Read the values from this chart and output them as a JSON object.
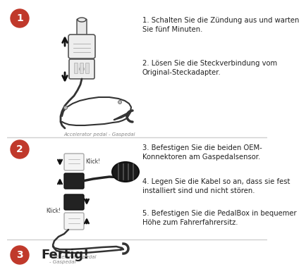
{
  "bg_color": "#ffffff",
  "separator_color": "#d0d0d0",
  "circle_color": "#c0392b",
  "circle_text_color": "#ffffff",
  "text_color": "#222222",
  "section1": {
    "circle_label": "1",
    "text1": "1. Schalten Sie die Zündung aus und warten\nSie fünf Minuten.",
    "text2": "2. Lösen Sie die Steckverbindung vom\nOriginal-Steckadapter.",
    "caption": "Accelerator pedal - Gaspedal"
  },
  "section2": {
    "circle_label": "2",
    "text3": "3. Befestigen Sie die beiden OEM-\nKonnektoren am Gaspedalsensor.",
    "text4": "4. Legen Sie die Kabel so an, dass sie fest\ninstalliert sind und nicht stören.",
    "text5": "5. Befestigen Sie die PedalBox in bequemer\nHöhe zum Fahrerfahrersitz.",
    "caption": "- Accelerator pedal\n- Gaspedal"
  },
  "section3": {
    "circle_label": "3",
    "text": "Fertig!"
  }
}
